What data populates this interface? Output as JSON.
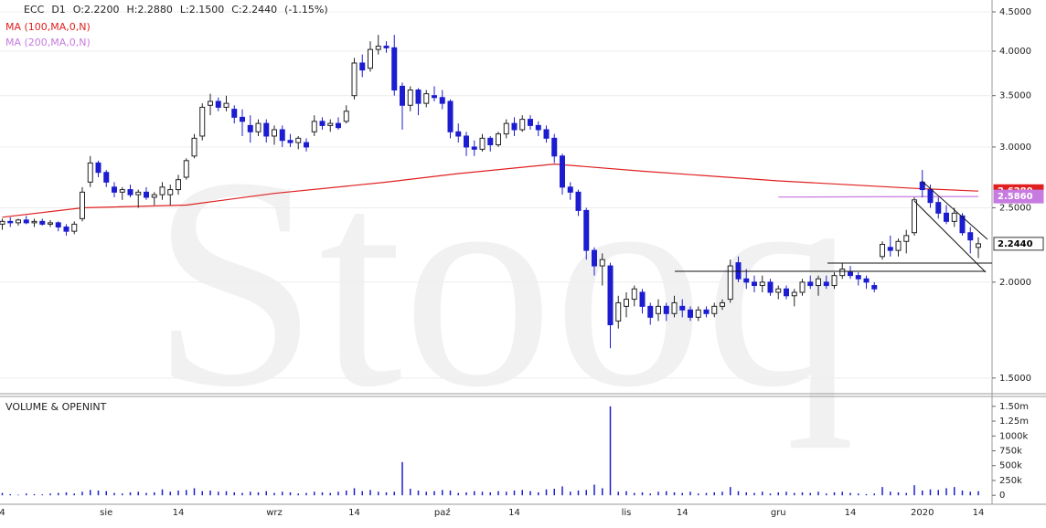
{
  "chart_data": {
    "type": "candlestick",
    "header": [
      "ECC",
      "D1",
      "O:2.2200",
      "H:2.2880",
      "L:2.1500",
      "C:2.2440",
      "(-1.15%)"
    ],
    "watermark": "Stooq",
    "categories": [
      "4",
      null,
      null,
      null,
      null,
      null,
      null,
      null,
      null,
      null,
      null,
      null,
      null,
      "sie",
      null,
      null,
      null,
      null,
      null,
      null,
      null,
      null,
      "14",
      null,
      null,
      null,
      null,
      null,
      null,
      null,
      null,
      null,
      null,
      null,
      "wrz",
      null,
      null,
      null,
      null,
      null,
      null,
      null,
      null,
      null,
      "14",
      null,
      null,
      null,
      null,
      null,
      null,
      null,
      null,
      null,
      null,
      "paź",
      null,
      null,
      null,
      null,
      null,
      null,
      null,
      null,
      "14",
      null,
      null,
      null,
      null,
      null,
      null,
      null,
      null,
      null,
      null,
      null,
      null,
      null,
      "lis",
      null,
      null,
      null,
      null,
      null,
      null,
      "14",
      null,
      null,
      null,
      null,
      null,
      null,
      null,
      null,
      null,
      null,
      null,
      "gru",
      null,
      null,
      null,
      null,
      null,
      null,
      null,
      null,
      "14",
      null,
      null,
      null,
      null,
      null,
      null,
      null,
      null,
      "2020",
      null,
      null,
      null,
      null,
      null,
      null,
      "14"
    ],
    "open": [
      2.38,
      2.4,
      2.39,
      2.41,
      2.39,
      2.4,
      2.38,
      2.39,
      2.36,
      2.33,
      2.42,
      2.7,
      2.86,
      2.78,
      2.66,
      2.62,
      2.64,
      2.6,
      2.62,
      2.58,
      2.6,
      2.6,
      2.64,
      2.74,
      2.92,
      3.1,
      3.4,
      3.44,
      3.38,
      3.36,
      3.28,
      3.2,
      3.14,
      3.22,
      3.1,
      3.16,
      3.06,
      3.04,
      3.04,
      3.14,
      3.24,
      3.2,
      3.22,
      3.24,
      3.5,
      3.86,
      3.8,
      4.02,
      4.06,
      4.04,
      3.6,
      3.4,
      3.56,
      3.42,
      3.5,
      3.48,
      3.44,
      3.14,
      3.1,
      3.0,
      2.98,
      3.08,
      3.02,
      3.12,
      3.22,
      3.16,
      3.26,
      3.2,
      3.16,
      3.08,
      2.92,
      2.66,
      2.62,
      2.48,
      2.2,
      2.1,
      2.1,
      1.78,
      1.86,
      1.9,
      1.94,
      1.86,
      1.82,
      1.86,
      1.82,
      1.86,
      1.84,
      1.8,
      1.84,
      1.82,
      1.86,
      1.9,
      2.12,
      2.02,
      2.0,
      1.98,
      2.0,
      1.94,
      1.96,
      1.92,
      1.94,
      2.0,
      1.98,
      2.0,
      1.98,
      2.04,
      2.06,
      2.04,
      2.02,
      1.98,
      2.16,
      2.22,
      2.2,
      2.26,
      2.32,
      2.7,
      2.64,
      2.54,
      2.46,
      2.4,
      2.44,
      2.32,
      2.22
    ],
    "high": [
      2.42,
      2.43,
      2.42,
      2.44,
      2.42,
      2.42,
      2.41,
      2.4,
      2.38,
      2.4,
      2.66,
      2.92,
      2.88,
      2.8,
      2.7,
      2.66,
      2.68,
      2.64,
      2.66,
      2.62,
      2.7,
      2.68,
      2.76,
      2.9,
      3.12,
      3.42,
      3.52,
      3.48,
      3.5,
      3.4,
      3.36,
      3.3,
      3.26,
      3.26,
      3.2,
      3.2,
      3.12,
      3.1,
      3.08,
      3.3,
      3.28,
      3.26,
      3.28,
      3.4,
      3.92,
      3.96,
      4.12,
      4.2,
      4.12,
      4.2,
      3.64,
      3.6,
      3.58,
      3.56,
      3.6,
      3.56,
      3.46,
      3.22,
      3.14,
      3.06,
      3.12,
      3.1,
      3.14,
      3.26,
      3.28,
      3.3,
      3.3,
      3.24,
      3.2,
      3.12,
      2.94,
      2.7,
      2.64,
      2.5,
      2.22,
      2.18,
      2.12,
      1.92,
      1.94,
      1.98,
      1.96,
      1.88,
      1.9,
      1.88,
      1.92,
      1.9,
      1.86,
      1.86,
      1.86,
      1.88,
      1.9,
      2.14,
      2.16,
      2.08,
      2.04,
      2.04,
      2.02,
      1.98,
      1.98,
      1.96,
      2.02,
      2.04,
      2.04,
      2.04,
      2.06,
      2.12,
      2.1,
      2.06,
      2.04,
      2.0,
      2.26,
      2.3,
      2.28,
      2.34,
      2.58,
      2.8,
      2.68,
      2.58,
      2.52,
      2.5,
      2.46,
      2.36,
      2.288
    ],
    "low": [
      2.34,
      2.36,
      2.37,
      2.38,
      2.36,
      2.37,
      2.36,
      2.33,
      2.3,
      2.31,
      2.4,
      2.66,
      2.74,
      2.66,
      2.58,
      2.56,
      2.58,
      2.5,
      2.56,
      2.52,
      2.56,
      2.52,
      2.6,
      2.72,
      2.9,
      3.06,
      3.3,
      3.34,
      3.34,
      3.22,
      3.1,
      3.04,
      3.1,
      3.04,
      3.02,
      3.0,
      3.0,
      2.98,
      2.96,
      3.1,
      3.16,
      3.14,
      3.16,
      3.22,
      3.46,
      3.7,
      3.76,
      3.96,
      3.98,
      3.5,
      3.16,
      3.34,
      3.3,
      3.38,
      3.44,
      3.36,
      3.08,
      3.04,
      2.92,
      2.92,
      2.96,
      2.96,
      3.0,
      3.08,
      3.1,
      3.14,
      3.16,
      3.1,
      3.04,
      2.86,
      2.6,
      2.56,
      2.44,
      2.14,
      2.04,
      1.98,
      1.64,
      1.74,
      1.8,
      1.86,
      1.82,
      1.76,
      1.78,
      1.78,
      1.8,
      1.8,
      1.78,
      1.78,
      1.8,
      1.8,
      1.84,
      1.88,
      2.0,
      1.96,
      1.94,
      1.94,
      1.92,
      1.9,
      1.9,
      1.86,
      1.92,
      1.96,
      1.92,
      1.96,
      1.96,
      2.02,
      2.02,
      1.98,
      1.96,
      1.94,
      2.14,
      2.16,
      2.16,
      2.18,
      2.3,
      2.58,
      2.5,
      2.42,
      2.38,
      2.36,
      2.3,
      2.18,
      2.15
    ],
    "close": [
      2.4,
      2.39,
      2.41,
      2.39,
      2.4,
      2.38,
      2.39,
      2.36,
      2.33,
      2.38,
      2.62,
      2.86,
      2.78,
      2.7,
      2.62,
      2.64,
      2.6,
      2.62,
      2.58,
      2.6,
      2.66,
      2.64,
      2.72,
      2.88,
      3.08,
      3.38,
      3.44,
      3.38,
      3.42,
      3.28,
      3.24,
      3.14,
      3.22,
      3.1,
      3.16,
      3.06,
      3.04,
      3.08,
      3.0,
      3.24,
      3.2,
      3.22,
      3.18,
      3.34,
      3.86,
      3.78,
      4.02,
      4.06,
      4.04,
      3.56,
      3.4,
      3.56,
      3.42,
      3.52,
      3.48,
      3.42,
      3.14,
      3.1,
      3.0,
      2.98,
      3.08,
      3.02,
      3.12,
      3.22,
      3.16,
      3.26,
      3.2,
      3.16,
      3.08,
      2.92,
      2.66,
      2.62,
      2.48,
      2.2,
      2.1,
      2.14,
      1.76,
      1.88,
      1.9,
      1.96,
      1.86,
      1.8,
      1.86,
      1.82,
      1.88,
      1.84,
      1.8,
      1.84,
      1.82,
      1.86,
      1.88,
      2.1,
      2.02,
      2.0,
      1.98,
      2.0,
      1.94,
      1.96,
      1.92,
      1.94,
      2.0,
      1.98,
      2.02,
      1.98,
      2.04,
      2.08,
      2.04,
      2.02,
      2.0,
      1.96,
      2.24,
      2.2,
      2.26,
      2.3,
      2.56,
      2.64,
      2.54,
      2.46,
      2.4,
      2.46,
      2.32,
      2.27,
      2.244
    ],
    "up_color": "#ffffff",
    "down_color": "#1c1cd0",
    "outline_color": "#222222",
    "ylim": [
      1.435,
      4.625
    ],
    "log_scale": true,
    "yticks": [
      {
        "value": 1.5,
        "label": "1.5000"
      },
      {
        "value": 2,
        "label": "2.0000"
      },
      {
        "value": 2.5,
        "label": "2.5000"
      },
      {
        "value": 3,
        "label": "3.0000"
      },
      {
        "value": 3.5,
        "label": "3.5000"
      },
      {
        "value": 4,
        "label": "4.0000"
      },
      {
        "value": 4.5,
        "label": "4.5000"
      }
    ],
    "grid": true,
    "close_label": "2.2440",
    "overlays": [
      {
        "name": "MA (100,MA,0,N)",
        "color": "#e02020",
        "x": [
          0,
          10,
          23,
          34,
          48,
          57,
          69,
          80,
          97,
          114,
          122
        ],
        "values": [
          2.43,
          2.5,
          2.52,
          2.61,
          2.7,
          2.77,
          2.85,
          2.79,
          2.71,
          2.65,
          2.628
        ],
        "last_label": "2.6280"
      },
      {
        "name": "MA (200,MA,0,N)",
        "color": "#c77be0",
        "x": [
          97,
          110,
          122
        ],
        "values": [
          2.582,
          2.584,
          2.586
        ],
        "last_label": "2.5860"
      }
    ],
    "volume": {
      "title": "VOLUME & OPENINT",
      "color": "#1c1cd0",
      "values": [
        40000,
        20000,
        10000,
        30000,
        20000,
        15000,
        30000,
        40000,
        50000,
        30000,
        60000,
        90000,
        80000,
        70000,
        40000,
        30000,
        50000,
        60000,
        40000,
        50000,
        100000,
        60000,
        80000,
        90000,
        120000,
        70000,
        80000,
        60000,
        70000,
        50000,
        40000,
        60000,
        50000,
        70000,
        40000,
        60000,
        50000,
        30000,
        40000,
        60000,
        50000,
        40000,
        60000,
        80000,
        120000,
        70000,
        90000,
        60000,
        50000,
        60000,
        560000,
        110000,
        80000,
        60000,
        70000,
        90000,
        80000,
        40000,
        50000,
        70000,
        60000,
        50000,
        70000,
        60000,
        80000,
        90000,
        70000,
        50000,
        100000,
        110000,
        150000,
        60000,
        80000,
        90000,
        180000,
        120000,
        1500000,
        60000,
        70000,
        40000,
        50000,
        30000,
        60000,
        70000,
        50000,
        40000,
        60000,
        30000,
        40000,
        50000,
        60000,
        140000,
        70000,
        50000,
        40000,
        60000,
        30000,
        50000,
        60000,
        40000,
        50000,
        40000,
        60000,
        30000,
        50000,
        60000,
        40000,
        30000,
        20000,
        30000,
        140000,
        60000,
        50000,
        40000,
        170000,
        80000,
        100000,
        90000,
        120000,
        140000,
        80000,
        60000,
        70000
      ],
      "ylim": [
        -120000,
        1620000
      ],
      "yticks": [
        0,
        {
          "value": 250000,
          "label": "250k"
        },
        {
          "value": 500000,
          "label": "500k"
        },
        {
          "value": 750000,
          "label": "750k"
        },
        {
          "value": 1000000,
          "label": "1000k"
        },
        {
          "value": 1250000,
          "label": "1.25m"
        },
        {
          "value": 1500000,
          "label": "1.50m"
        }
      ]
    }
  }
}
